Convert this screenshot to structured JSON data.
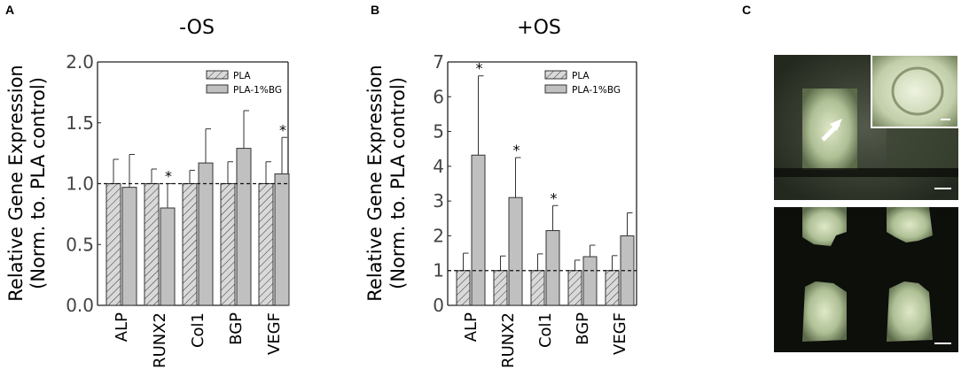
{
  "panels": {
    "A": "A",
    "B": "B",
    "C": "C"
  },
  "chart_data": [
    {
      "panel": "A",
      "type": "bar",
      "title": "-OS",
      "ylabel_line1": "Relative Gene Expression",
      "ylabel_line2": "(Norm. to. PLA control)",
      "ylim": [
        0,
        2.0
      ],
      "yticks": [
        "0.0",
        "0.5",
        "1.0",
        "1.5",
        "2.0"
      ],
      "ytick_values": [
        0,
        0.5,
        1.0,
        1.5,
        2.0
      ],
      "reference_line": 1.0,
      "categories": [
        "ALP",
        "RUNX2",
        "Col1",
        "BGP",
        "VEGF"
      ],
      "series": [
        {
          "name": "PLA",
          "values": [
            1.0,
            1.0,
            1.0,
            1.0,
            1.0
          ],
          "errors": [
            0.2,
            0.12,
            0.11,
            0.18,
            0.18
          ],
          "color": "#d9d9d9",
          "pattern": "hatch"
        },
        {
          "name": "PLA-1%BG",
          "values": [
            0.97,
            0.8,
            1.17,
            1.29,
            1.08
          ],
          "errors": [
            0.27,
            0.2,
            0.28,
            0.31,
            0.3
          ],
          "color": "#c0c0c0",
          "pattern": "solid"
        }
      ],
      "significance": [
        "",
        "*",
        "",
        "",
        "*"
      ],
      "legend": "top-right"
    },
    {
      "panel": "B",
      "type": "bar",
      "title": "+OS",
      "ylabel_line1": "Relative Gene Expression",
      "ylabel_line2": "(Norm. to. PLA control)",
      "ylim": [
        0,
        7
      ],
      "yticks": [
        "0",
        "1",
        "2",
        "3",
        "4",
        "5",
        "6",
        "7"
      ],
      "ytick_values": [
        0,
        1,
        2,
        3,
        4,
        5,
        6,
        7
      ],
      "reference_line": 1.0,
      "categories": [
        "ALP",
        "RUNX2",
        "Col1",
        "BGP",
        "VEGF"
      ],
      "series": [
        {
          "name": "PLA",
          "values": [
            1.0,
            1.0,
            1.0,
            1.0,
            1.0
          ],
          "errors": [
            0.5,
            0.42,
            0.48,
            0.3,
            0.43
          ],
          "color": "#d9d9d9",
          "pattern": "hatch"
        },
        {
          "name": "PLA-1%BG",
          "values": [
            4.32,
            3.1,
            2.15,
            1.4,
            2.0
          ],
          "errors": [
            2.28,
            1.15,
            0.72,
            0.33,
            0.66
          ],
          "color": "#c0c0c0",
          "pattern": "solid"
        }
      ],
      "significance": [
        "*",
        "*",
        "*",
        "",
        ""
      ],
      "legend": "top-right"
    }
  ]
}
